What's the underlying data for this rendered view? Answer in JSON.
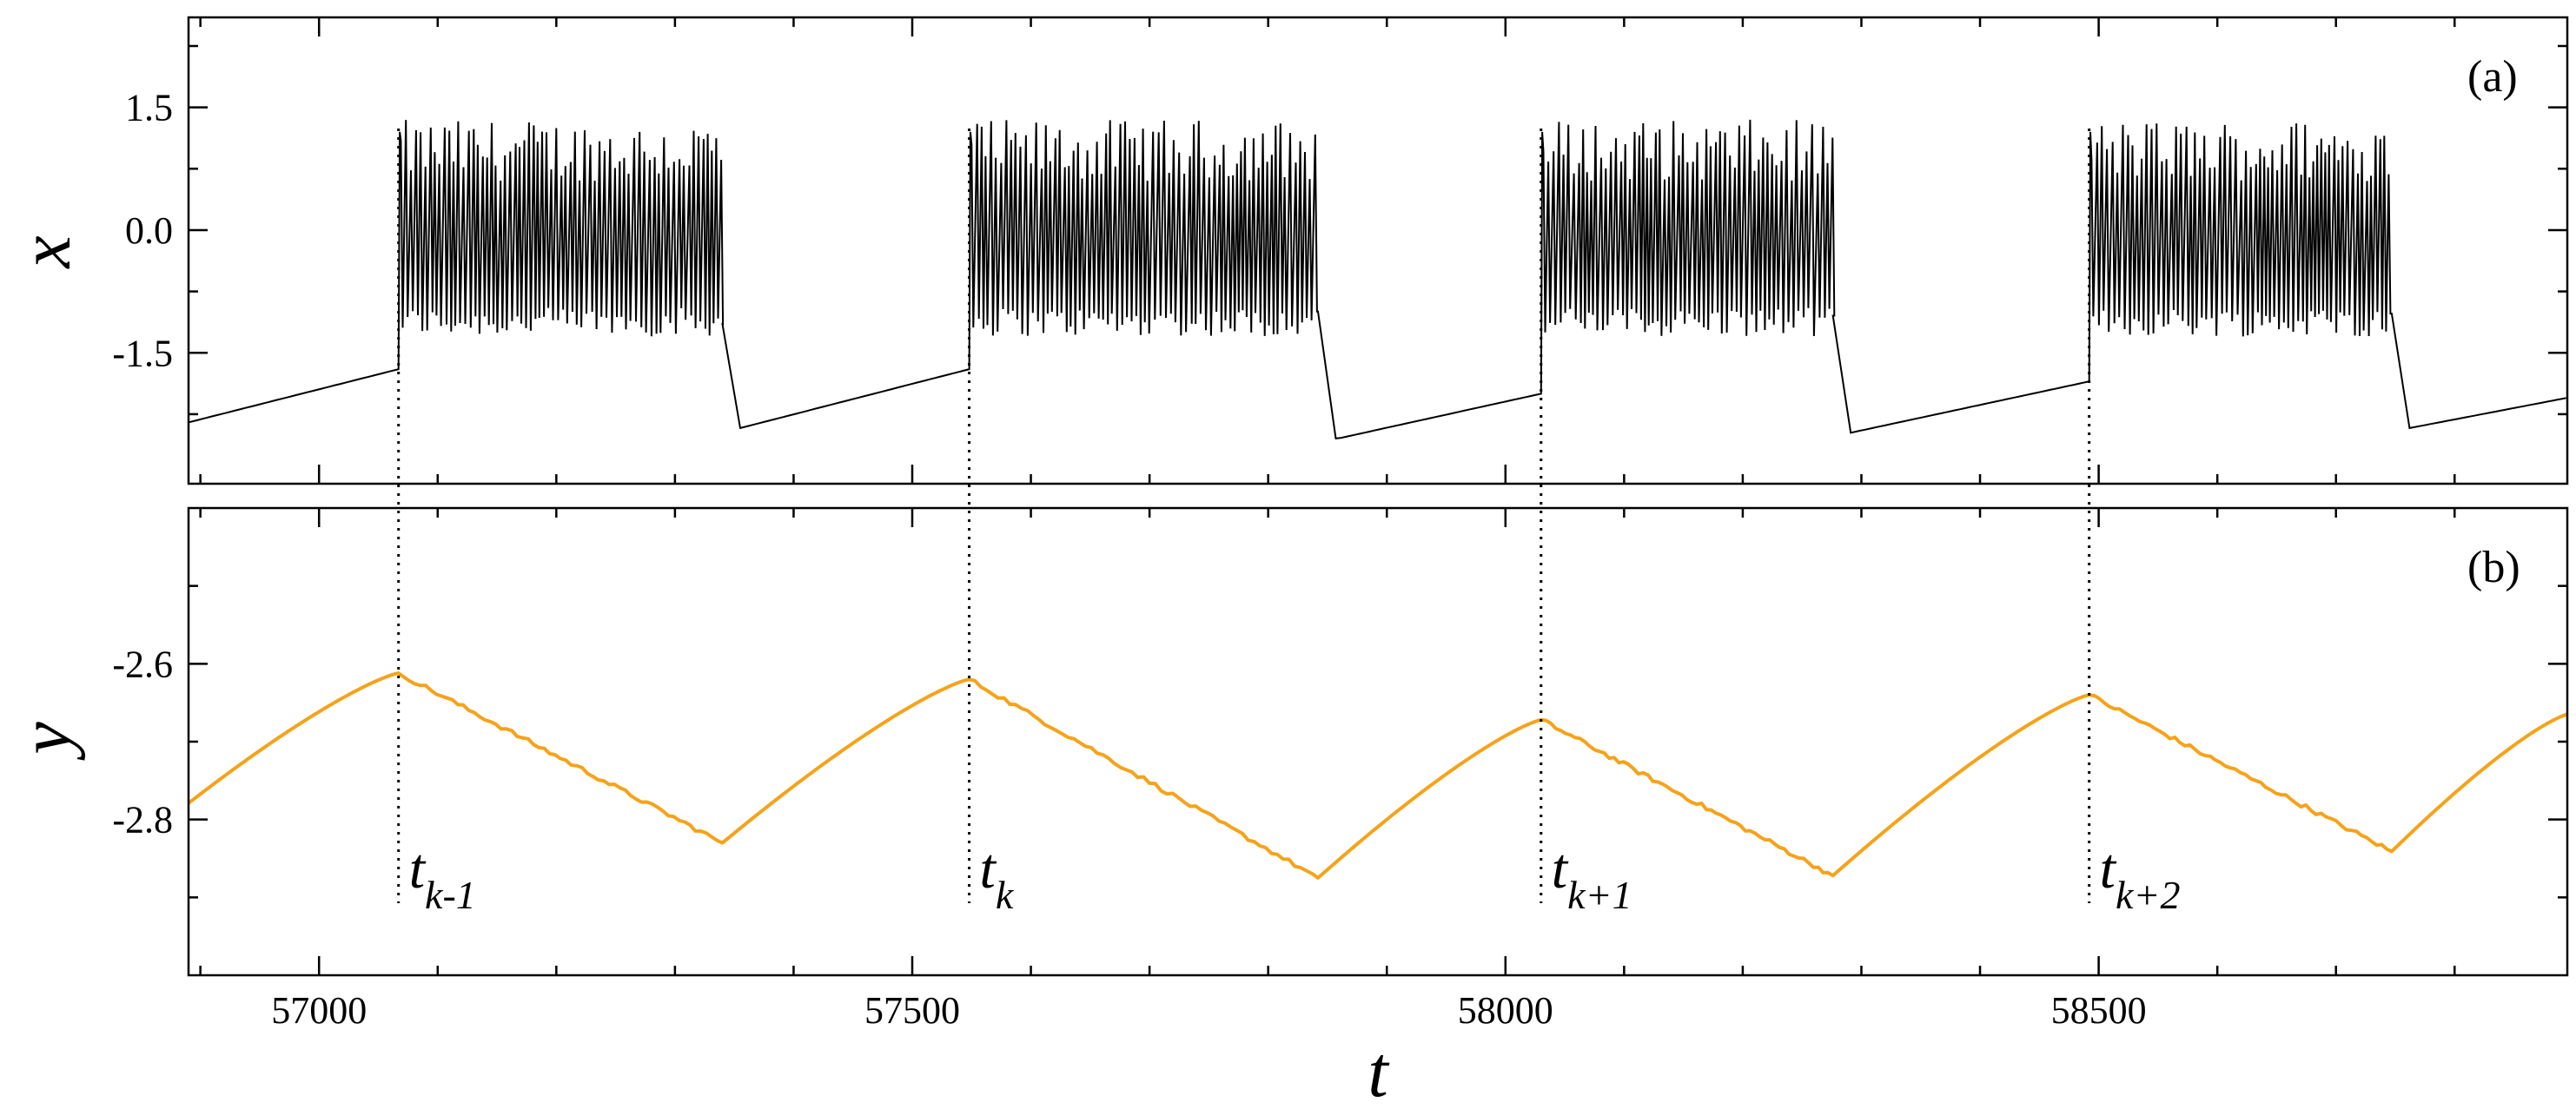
{
  "chart_data": [
    {
      "panel_label": "(a)",
      "type": "line",
      "ylabel": "x",
      "xlabel": "",
      "xlim": [
        56890,
        58895
      ],
      "ylim": [
        -3.1,
        2.6
      ],
      "yticks": [
        -1.5,
        0.0,
        1.5
      ],
      "ytick_labels": [
        "-1.5",
        "0.0",
        "1.5"
      ],
      "grid": false,
      "series_color": "#000000",
      "description": "bursting signal: slow ramp during quiescence, fast spiking between about -1.3 and 1.3 during each burst",
      "bursts": [
        {
          "start": 57067,
          "end": 57340
        },
        {
          "start": 57548,
          "end": 57842
        },
        {
          "start": 58030,
          "end": 58276
        },
        {
          "start": 58492,
          "end": 58747
        }
      ],
      "quiescent_points": [
        {
          "t": 56890,
          "x": -2.35
        },
        {
          "t": 57067,
          "x": -1.7
        },
        {
          "t": 57355,
          "x": -2.42
        },
        {
          "t": 57548,
          "x": -1.7
        },
        {
          "t": 57858,
          "x": -2.55
        },
        {
          "t": 58030,
          "x": -2.0
        },
        {
          "t": 58290,
          "x": -2.48
        },
        {
          "t": 58492,
          "x": -1.85
        },
        {
          "t": 58762,
          "x": -2.42
        },
        {
          "t": 58895,
          "x": -2.05
        }
      ]
    },
    {
      "panel_label": "(b)",
      "type": "line",
      "ylabel": "y",
      "xlabel": "t",
      "xlim": [
        56890,
        58895
      ],
      "ylim": [
        -3.0,
        -2.4
      ],
      "yticks": [
        -2.6,
        -2.8
      ],
      "ytick_labels": [
        "-2.6",
        "-2.8"
      ],
      "xticks": [
        57000,
        57500,
        58000,
        58500
      ],
      "xtick_labels": [
        "57000",
        "57500",
        "58000",
        "58500"
      ],
      "grid": false,
      "series_color": "#f5a31a",
      "points": [
        {
          "t": 56890,
          "y": -2.779
        },
        {
          "t": 57067,
          "y": -2.612
        },
        {
          "t": 57340,
          "y": -2.83
        },
        {
          "t": 57548,
          "y": -2.62
        },
        {
          "t": 57842,
          "y": -2.875
        },
        {
          "t": 58030,
          "y": -2.672
        },
        {
          "t": 58276,
          "y": -2.872
        },
        {
          "t": 58492,
          "y": -2.64
        },
        {
          "t": 58747,
          "y": -2.841
        },
        {
          "t": 58895,
          "y": -2.665
        }
      ]
    }
  ],
  "events": [
    {
      "t": 57067,
      "label": "t",
      "subscript": "k-1"
    },
    {
      "t": 57548,
      "label": "t",
      "subscript": "k"
    },
    {
      "t": 58030,
      "label": "t",
      "subscript": "k+1"
    },
    {
      "t": 58492,
      "label": "t",
      "subscript": "k+2"
    }
  ]
}
